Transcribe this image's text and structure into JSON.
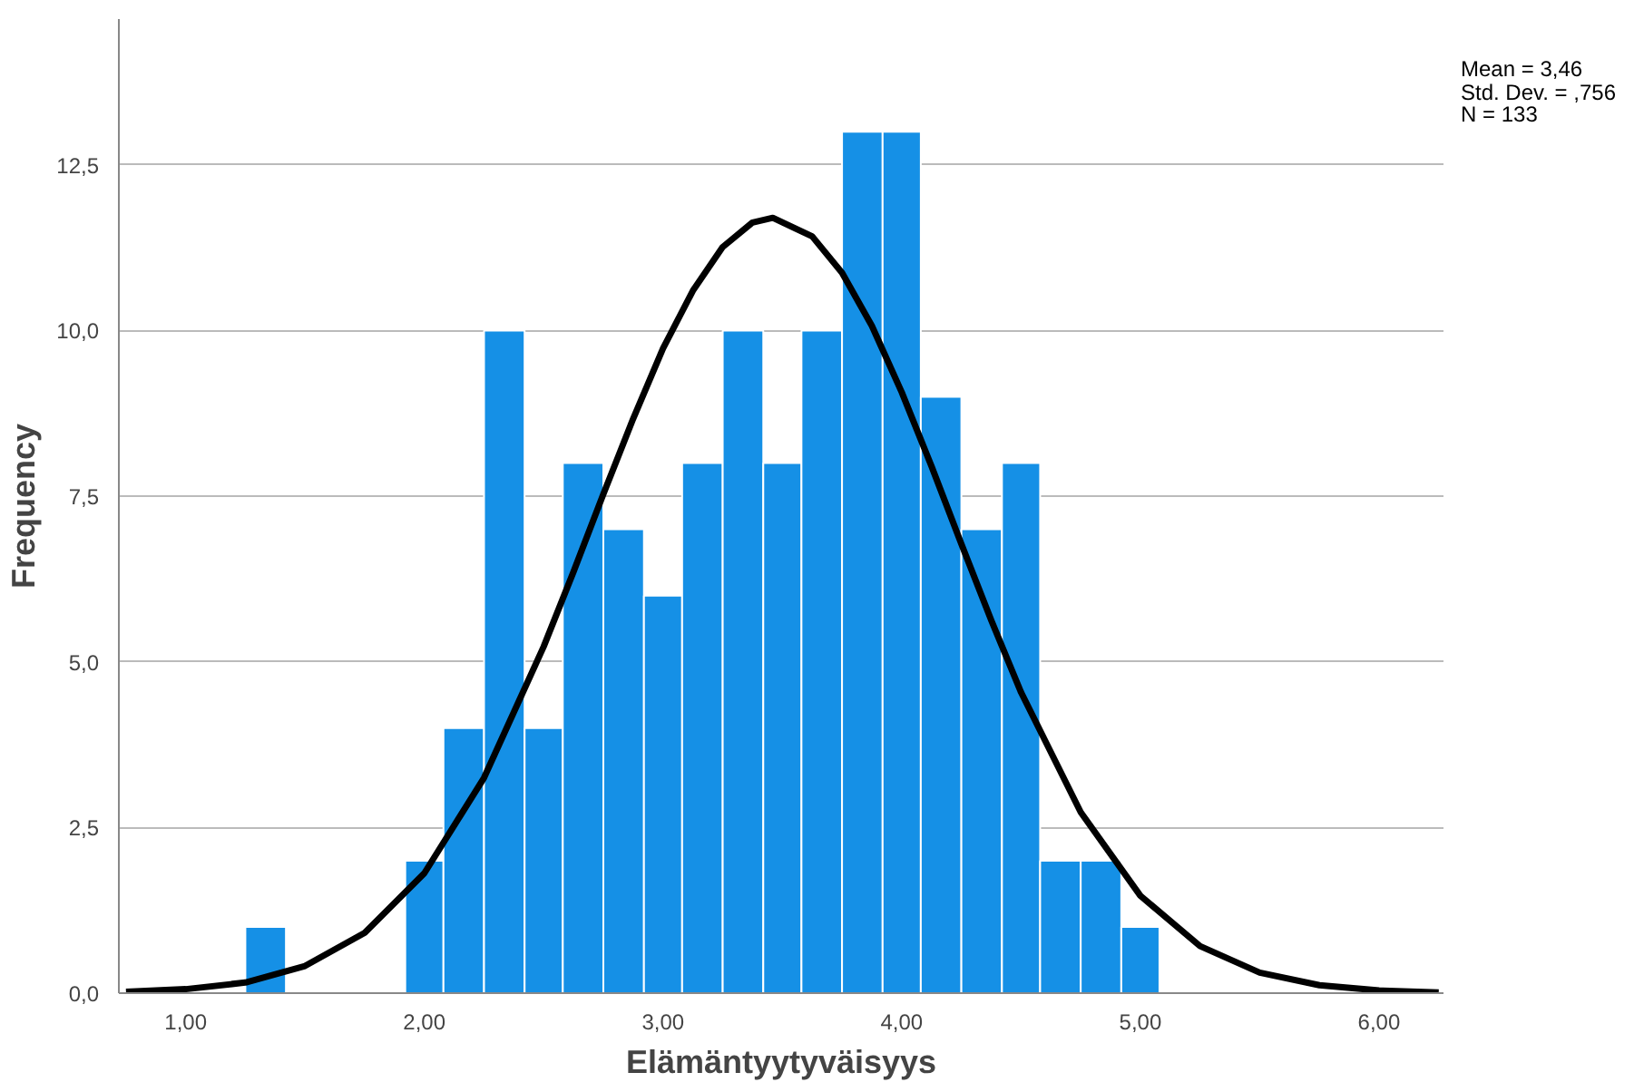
{
  "chart_data": {
    "type": "histogram",
    "xlabel": "Elämäntyytyväisyys",
    "ylabel": "Frequency",
    "bins": [
      1.25,
      1.42,
      1.92,
      2.08,
      2.25,
      2.42,
      2.58,
      2.75,
      2.92,
      3.08,
      3.25,
      3.42,
      3.58,
      3.75,
      3.92,
      4.08,
      4.25,
      4.42,
      4.58,
      4.75,
      4.92,
      5.08
    ],
    "values": [
      1,
      0,
      2,
      4,
      10,
      4,
      8,
      7,
      6,
      8,
      10,
      8,
      10,
      13,
      13,
      9,
      7,
      8,
      2,
      2,
      1
    ],
    "color": "#1590e6",
    "series": [
      {
        "type": "line",
        "color": "#000000",
        "x": [
          0.75,
          1.0,
          1.25,
          1.5,
          1.75,
          2.0,
          2.25,
          2.5,
          2.625,
          2.75,
          2.875,
          3.0,
          3.125,
          3.25,
          3.375,
          3.46,
          3.625,
          3.75,
          3.875,
          4.0,
          4.125,
          4.25,
          4.375,
          4.5,
          4.75,
          5.0,
          5.25,
          5.5,
          5.75,
          6.0,
          6.25
        ],
        "values": [
          0.02,
          0.06,
          0.16,
          0.41,
          0.91,
          1.81,
          3.25,
          5.23,
          6.36,
          7.53,
          8.67,
          9.73,
          10.6,
          11.26,
          11.63,
          11.7,
          11.42,
          10.87,
          10.07,
          9.07,
          7.95,
          6.78,
          5.63,
          4.54,
          2.73,
          1.47,
          0.71,
          0.31,
          0.12,
          0.04,
          0.01
        ]
      }
    ],
    "xlim": [
      0.72,
      6.27
    ],
    "ylim": [
      0,
      14.7
    ],
    "xticks": [
      {
        "value": 1,
        "label": "1,00"
      },
      {
        "value": 2,
        "label": "2,00"
      },
      {
        "value": 3,
        "label": "3,00"
      },
      {
        "value": 4,
        "label": "4,00"
      },
      {
        "value": 5,
        "label": "5,00"
      },
      {
        "value": 6,
        "label": "6,00"
      }
    ],
    "yticks": [
      {
        "value": 0,
        "label": "0,0"
      },
      {
        "value": 2.5,
        "label": "2,5"
      },
      {
        "value": 5,
        "label": "5,0"
      },
      {
        "value": 7.5,
        "label": "7,5"
      },
      {
        "value": 10,
        "label": "10,0"
      },
      {
        "value": 12.5,
        "label": "12,5"
      }
    ],
    "grid": "y",
    "annotations": [
      "Mean = 3,46",
      "Std. Dev. = ,756",
      "N = 133"
    ]
  }
}
